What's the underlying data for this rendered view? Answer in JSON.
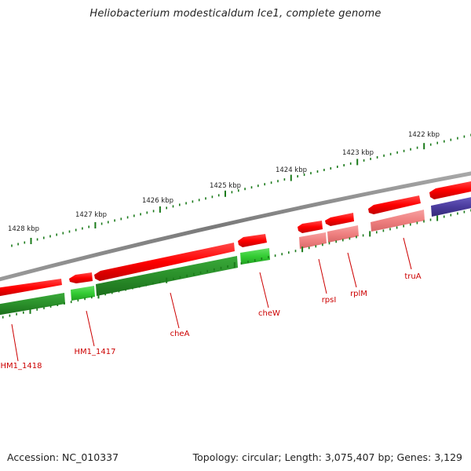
{
  "title": "Heliobacterium modesticaldum Ice1, complete genome",
  "footer": {
    "accession": "Accession: NC_010337",
    "info": "Topology: circular; Length: 3,075,407 bp; Genes: 3,129"
  },
  "scale_labels": [
    "1428 kbp",
    "1427 kbp",
    "1426 kbp",
    "1425 kbp",
    "1424 kbp",
    "1423 kbp",
    "1422 kbp"
  ],
  "gene_labels": [
    "HM1_1418",
    "HM1_1417",
    "cheA",
    "cheW",
    "rpsI",
    "rplM",
    "truA"
  ],
  "colors": {
    "backbone": "#808080",
    "gene_red": "#ff0000",
    "gene_light_red": "#f08080",
    "gene_green": "#2ca02c",
    "gene_bright_green": "#33cc33",
    "gene_blue": "#4b3c9e",
    "tick_green": "#1a7a1a",
    "label_red": "#cc0000"
  }
}
